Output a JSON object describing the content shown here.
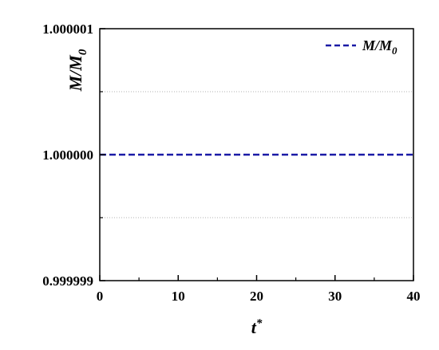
{
  "chart_data": {
    "type": "line",
    "xlabel": "t",
    "xlabel_sup": "*",
    "ylabel": "M/M",
    "ylabel_sub": "0",
    "xlim": [
      0,
      40
    ],
    "ylim": [
      0.999999,
      1.000001
    ],
    "x_ticks": [
      0,
      10,
      20,
      30,
      40
    ],
    "x_tick_labels": [
      "0",
      "10",
      "20",
      "30",
      "40"
    ],
    "y_ticks": [
      0.999999,
      1.0,
      1.000001
    ],
    "y_tick_labels": [
      "0.999999",
      "1.000000",
      "1.000001"
    ],
    "grid": "horizontal dotted at minor ticks",
    "legend_position": "top-right",
    "series": [
      {
        "name": "M/M",
        "name_sub": "0",
        "style": "dashed",
        "color": "#1a1aa6",
        "x": [
          0,
          40
        ],
        "y": [
          1.0,
          1.0
        ]
      }
    ]
  }
}
